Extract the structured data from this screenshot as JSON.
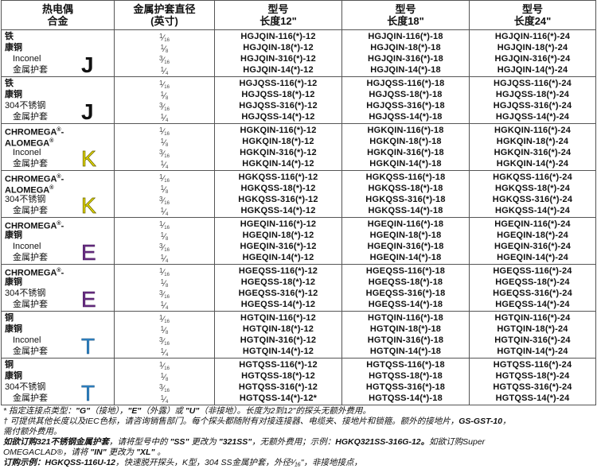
{
  "header": {
    "col1": [
      "热电偶",
      "合金"
    ],
    "col2": [
      "金属护套直径",
      "(英寸)"
    ],
    "col3": [
      "型号",
      "长度12\""
    ],
    "col4": [
      "型号",
      "长度18\""
    ],
    "col5": [
      "型号",
      "长度24\""
    ]
  },
  "sizes": [
    "1/16",
    "1/8",
    "3/16",
    "1/4"
  ],
  "letter_colors": {
    "J": "#111111",
    "K": "#e6dc00",
    "E": "#6a2d85",
    "T": "#2f86c8"
  },
  "groups": [
    {
      "letter": "J",
      "materials": [
        "铁",
        "康铜",
        "Inconel",
        "金属护套"
      ],
      "models": [
        [
          "HGJQIN-116(*)-12",
          "HGJQIN-116(*)-18",
          "HGJQIN-116(*)-24"
        ],
        [
          "HGJQIN-18(*)-12",
          "HGJQIN-18(*)-18",
          "HGJQIN-18(*)-24"
        ],
        [
          "HGJQIN-316(*)-12",
          "HGJQIN-316(*)-18",
          "HGJQIN-316(*)-24"
        ],
        [
          "HGJQIN-14(*)-12",
          "HGJQIN-14(*)-18",
          "HGJQIN-14(*)-24"
        ]
      ]
    },
    {
      "letter": "J",
      "materials": [
        "铁",
        "康铜",
        "304不锈钢",
        "金属护套"
      ],
      "models": [
        [
          "HGJQSS-116(*)-12",
          "HGJQSS-116(*)-18",
          "HGJQSS-116(*)-24"
        ],
        [
          "HGJQSS-18(*)-12",
          "HGJQSS-18(*)-18",
          "HGJQSS-18(*)-24"
        ],
        [
          "HGJQSS-316(*)-12",
          "HGJQSS-316(*)-18",
          "HGJQSS-316(*)-24"
        ],
        [
          "HGJQSS-14(*)-12",
          "HGJQSS-14(*)-18",
          "HGJQSS-14(*)-24"
        ]
      ]
    },
    {
      "letter": "K",
      "materials": [
        "CHROMEGA®-",
        "ALOMEGA®",
        "Inconel",
        "金属护套"
      ],
      "models": [
        [
          "HGKQIN-116(*)-12",
          "HGKQIN-116(*)-18",
          "HGKQIN-116(*)-24"
        ],
        [
          "HGKQIN-18(*)-12",
          "HGKQIN-18(*)-18",
          "HGKQIN-18(*)-24"
        ],
        [
          "HGKQIN-316(*)-12",
          "HGKQIN-316(*)-18",
          "HGKQIN-316(*)-24"
        ],
        [
          "HGKQIN-14(*)-12",
          "HGKQIN-14(*)-18",
          "HGKQIN-14(*)-24"
        ]
      ]
    },
    {
      "letter": "K",
      "materials": [
        "CHROMEGA®-",
        "ALOMEGA®",
        "304不锈钢",
        "金属护套"
      ],
      "models": [
        [
          "HGKQSS-116(*)-12",
          "HGKQSS-116(*)-18",
          "HGKQSS-116(*)-24"
        ],
        [
          "HGKQSS-18(*)-12",
          "HGKQSS-18(*)-18",
          "HGKQSS-18(*)-24"
        ],
        [
          "HGKQSS-316(*)-12",
          "HGKQSS-316(*)-18",
          "HGKQSS-316(*)-24"
        ],
        [
          "HGKQSS-14(*)-12",
          "HGKQSS-14(*)-18",
          "HGKQSS-14(*)-24"
        ]
      ]
    },
    {
      "letter": "E",
      "materials": [
        "CHROMEGA®-",
        "康铜",
        "Inconel",
        "金属护套"
      ],
      "models": [
        [
          "HGEQIN-116(*)-12",
          "HGEQIN-116(*)-18",
          "HGEQIN-116(*)-24"
        ],
        [
          "HGEQIN-18(*)-12",
          "HGEQIN-18(*)-18",
          "HGEQIN-18(*)-24"
        ],
        [
          "HGEQIN-316(*)-12",
          "HGEQIN-316(*)-18",
          "HGEQIN-316(*)-24"
        ],
        [
          "HGEQIN-14(*)-12",
          "HGEQIN-14(*)-18",
          "HGEQIN-14(*)-24"
        ]
      ]
    },
    {
      "letter": "E",
      "materials": [
        "CHROMEGA®-",
        "康铜",
        "304不锈钢",
        "金属护套"
      ],
      "models": [
        [
          "HGEQSS-116(*)-12",
          "HGEQSS-116(*)-18",
          "HGEQSS-116(*)-24"
        ],
        [
          "HGEQSS-18(*)-12",
          "HGEQSS-18(*)-18",
          "HGEQSS-18(*)-24"
        ],
        [
          "HGEQSS-316(*)-12",
          "HGEQSS-316(*)-18",
          "HGEQSS-316(*)-24"
        ],
        [
          "HGEQSS-14(*)-12",
          "HGEQSS-14(*)-18",
          "HGEQSS-14(*)-24"
        ]
      ]
    },
    {
      "letter": "T",
      "materials": [
        "铜",
        "康铜",
        "Inconel",
        "金属护套"
      ],
      "models": [
        [
          "HGTQIN-116(*)-12",
          "HGTQIN-116(*)-18",
          "HGTQIN-116(*)-24"
        ],
        [
          "HGTQIN-18(*)-12",
          "HGTQIN-18(*)-18",
          "HGTQIN-18(*)-24"
        ],
        [
          "HGTQIN-316(*)-12",
          "HGTQIN-316(*)-18",
          "HGTQIN-316(*)-24"
        ],
        [
          "HGTQIN-14(*)-12",
          "HGTQIN-14(*)-18",
          "HGTQIN-14(*)-24"
        ]
      ]
    },
    {
      "letter": "T",
      "materials": [
        "铜",
        "康铜",
        "304不锈钢",
        "金属护套"
      ],
      "models": [
        [
          "HGTQSS-116(*)-12",
          "HGTQSS-116(*)-18",
          "HGTQSS-116(*)-24"
        ],
        [
          "HGTQSS-18(*)-12",
          "HGTQSS-18(*)-18",
          "HGTQSS-18(*)-24"
        ],
        [
          "HGTQSS-316(*)-12",
          "HGTQSS-316(*)-18",
          "HGTQSS-316(*)-24"
        ],
        [
          "HGTQSS-14(*)-12*",
          "HGTQSS-14(*)-18",
          "HGTQSS-14(*)-24"
        ]
      ]
    }
  ],
  "notes": [
    [
      {
        "t": "* 指定连接点类型："
      },
      {
        "t": "\"G\"",
        "b": true
      },
      {
        "t": "（接地），"
      },
      {
        "t": "\"E\"",
        "b": true
      },
      {
        "t": "（外露）或 "
      },
      {
        "t": "\"U\"",
        "b": true
      },
      {
        "t": "（非接地）。长度为2到12\"的探头无额外费用。"
      }
    ],
    [
      {
        "t": "† 可提供其他长度以及IEC色标，请咨询销售部门。每个探头都随附有对接连接器、电缆夹、接地片和锁箍。额外的接地片，"
      },
      {
        "t": "GS-GST-10",
        "b": true
      },
      {
        "t": "，"
      }
    ],
    [
      {
        "t": "需付额外费用。"
      }
    ],
    [
      {
        "t": "如欲订购321不锈钢金属护套",
        "b": true
      },
      {
        "t": "，请将型号中的 "
      },
      {
        "t": "\"SS\"",
        "b": true
      },
      {
        "t": " 更改为 "
      },
      {
        "t": "\"321SS\"",
        "b": true
      },
      {
        "t": "，无额外费用；示例："
      },
      {
        "t": "HGKQ321SS-316G-12。",
        "b": true
      },
      {
        "t": "如欲订购Super"
      }
    ],
    [
      {
        "t": "OMEGACLAD®，请将 "
      },
      {
        "t": "\"IN\"",
        "b": true
      },
      {
        "t": " 更改为 "
      },
      {
        "t": "\"XL\"",
        "b": true
      },
      {
        "t": " 。"
      }
    ],
    [
      {
        "t": "订购示例：HGKQSS-116U-12",
        "b": true
      },
      {
        "t": "，快速脱开探头，K型，304 SS金属护套，外径¹⁄₁₆\"，非接地接点，"
      }
    ]
  ]
}
